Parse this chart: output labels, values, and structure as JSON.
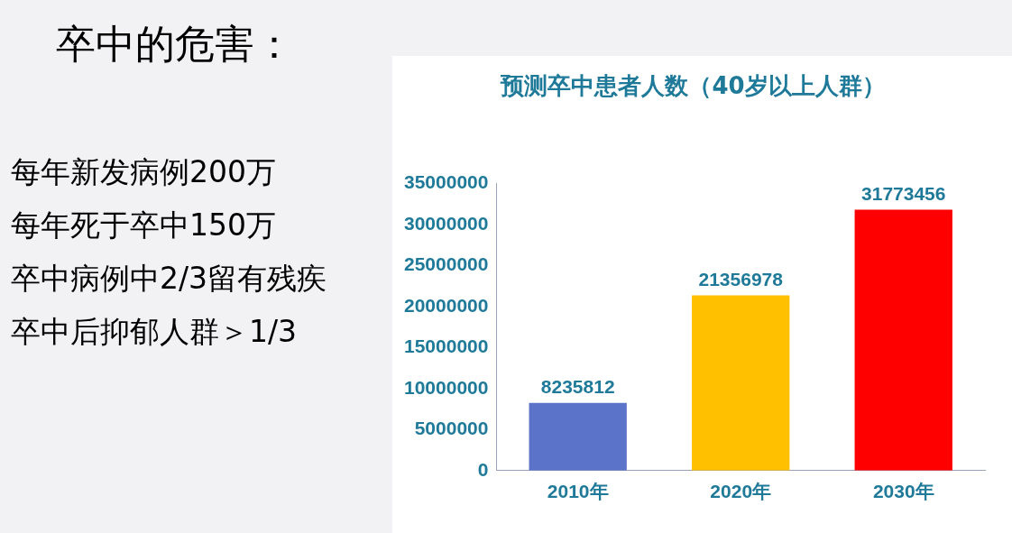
{
  "chart_data": {
    "type": "bar",
    "title": "预测卒中患者人数（40岁以上人群）",
    "categories": [
      "2010年",
      "2020年",
      "2030年"
    ],
    "values": [
      8235812,
      21356978,
      31773456
    ],
    "colors": [
      "#5b73c9",
      "#ffc000",
      "#ff0000"
    ],
    "ylim": [
      0,
      35000000
    ],
    "yticks": [
      0,
      5000000,
      10000000,
      15000000,
      20000000,
      25000000,
      30000000,
      35000000
    ],
    "grid": false,
    "legend": false,
    "data_labels": true,
    "annotations": [
      "卒中的危害：",
      "每年新发病例200万",
      "每年死于卒中150万",
      "卒中病例中2/3留有残疾",
      "卒中后抑郁人群＞1/3"
    ]
  }
}
